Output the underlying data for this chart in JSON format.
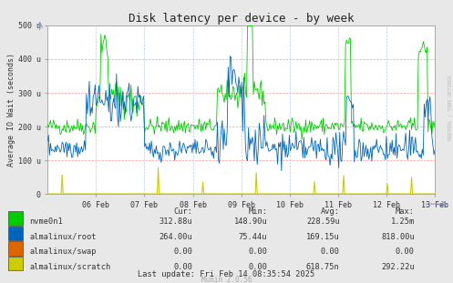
{
  "title": "Disk latency per device - by week",
  "ylabel": "Average IO Wait (seconds)",
  "background_color": "#e8e8e8",
  "plot_bg_color": "#ffffff",
  "ylim": [
    0,
    500
  ],
  "ytick_labels": [
    "0",
    "100 u",
    "200 u",
    "300 u",
    "400 u",
    "500 u"
  ],
  "xdate_labels": [
    "06 Feb",
    "07 Feb",
    "08 Feb",
    "09 Feb",
    "10 Feb",
    "11 Feb",
    "12 Feb",
    "13 Feb"
  ],
  "legend_data": [
    {
      "label": "nvme0n1",
      "color": "#00cc00",
      "cur": "312.88u",
      "min": "148.90u",
      "avg": "228.59u",
      "max": "1.25m"
    },
    {
      "label": "almalinux/root",
      "color": "#0066bb",
      "cur": "264.00u",
      "min": "75.44u",
      "avg": "169.15u",
      "max": "818.00u"
    },
    {
      "label": "almalinux/swap",
      "color": "#dd6600",
      "cur": "0.00",
      "min": "0.00",
      "avg": "0.00",
      "max": "0.00"
    },
    {
      "label": "almalinux/scratch",
      "color": "#cccc00",
      "cur": "0.00",
      "min": "0.00",
      "avg": "618.75n",
      "max": "292.22u"
    }
  ],
  "last_update": "Last update: Fri Feb 14 08:35:54 2025",
  "munin_version": "Munin 2.0.56",
  "rrdtool_label": "RRDTOOL / TOBI OETIKER"
}
